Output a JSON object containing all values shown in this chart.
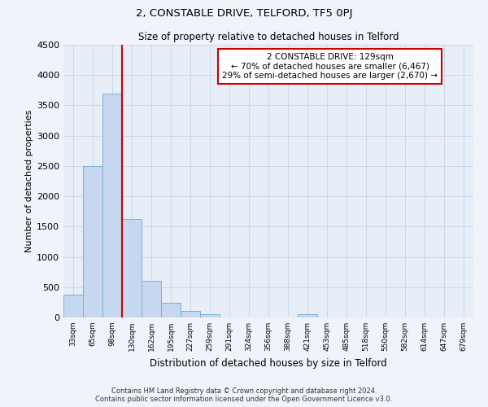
{
  "title": "2, CONSTABLE DRIVE, TELFORD, TF5 0PJ",
  "subtitle": "Size of property relative to detached houses in Telford",
  "xlabel": "Distribution of detached houses by size in Telford",
  "ylabel": "Number of detached properties",
  "bar_labels": [
    "33sqm",
    "65sqm",
    "98sqm",
    "130sqm",
    "162sqm",
    "195sqm",
    "227sqm",
    "259sqm",
    "291sqm",
    "324sqm",
    "356sqm",
    "388sqm",
    "421sqm",
    "453sqm",
    "485sqm",
    "518sqm",
    "550sqm",
    "582sqm",
    "614sqm",
    "647sqm",
    "679sqm"
  ],
  "bar_values": [
    380,
    2500,
    3700,
    1625,
    600,
    240,
    110,
    60,
    0,
    0,
    0,
    0,
    60,
    0,
    0,
    0,
    0,
    0,
    0,
    0,
    0
  ],
  "bar_color": "#c5d8f0",
  "bar_edge_color": "#7aafd4",
  "vline_color": "#cc0000",
  "annotation_title": "2 CONSTABLE DRIVE: 129sqm",
  "annotation_line1": "← 70% of detached houses are smaller (6,467)",
  "annotation_line2": "29% of semi-detached houses are larger (2,670) →",
  "annotation_box_color": "#cc0000",
  "ylim": [
    0,
    4500
  ],
  "yticks": [
    0,
    500,
    1000,
    1500,
    2000,
    2500,
    3000,
    3500,
    4000,
    4500
  ],
  "grid_color": "#c8d8ea",
  "bg_color": "#e8eef7",
  "fig_color": "#f0f4fa",
  "footer_line1": "Contains HM Land Registry data © Crown copyright and database right 2024.",
  "footer_line2": "Contains public sector information licensed under the Open Government Licence v3.0."
}
